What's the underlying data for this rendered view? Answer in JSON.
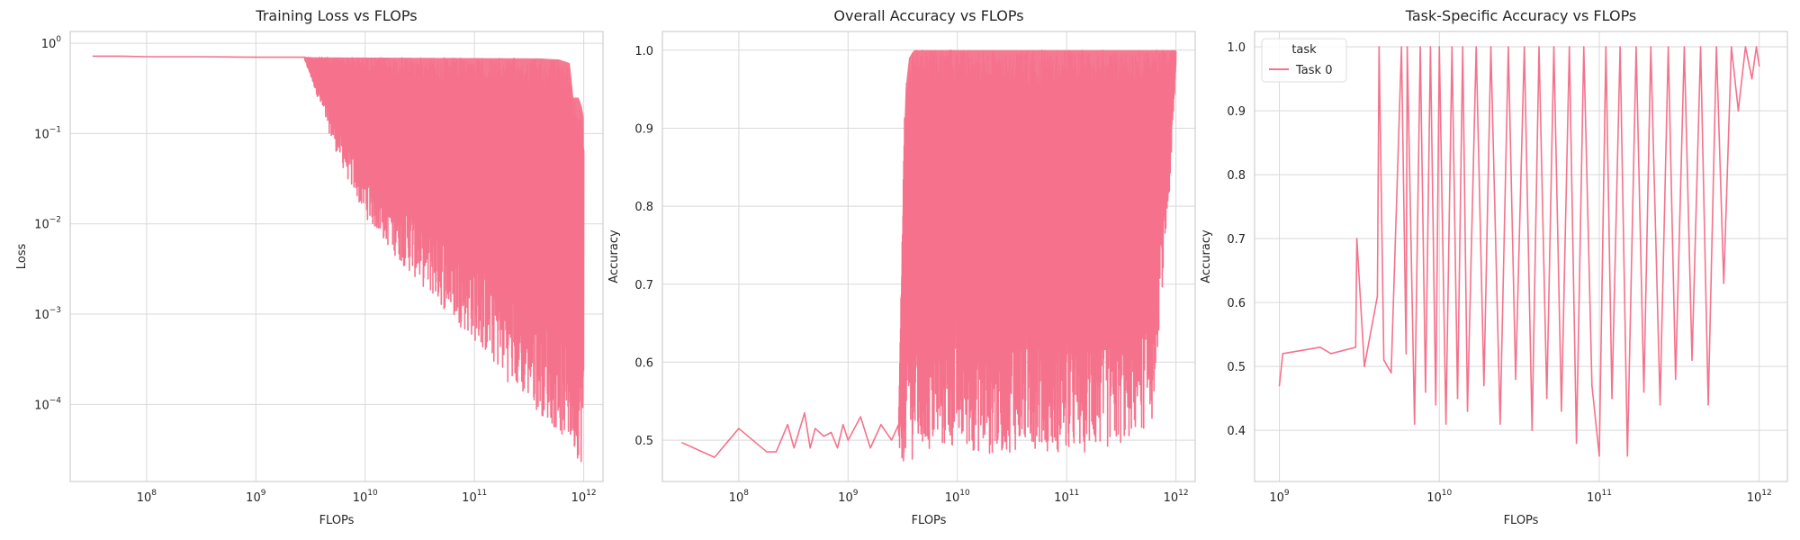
{
  "colors": {
    "series": "#f5728c",
    "grid": "#d9d9d9",
    "frame": "#cfcfcf",
    "text": "#262626"
  },
  "chart_data": [
    {
      "type": "line",
      "title": "Training Loss vs FLOPs",
      "xlabel": "FLOPs",
      "ylabel": "Loss",
      "xscale": "log",
      "yscale": "log",
      "xlim": [
        20000000.0,
        1500000000000.0
      ],
      "ylim": [
        1.4e-05,
        1.35
      ],
      "xticks": [
        {
          "value": 100000000.0,
          "base": "10",
          "exp": "8"
        },
        {
          "value": 1000000000.0,
          "base": "10",
          "exp": "9"
        },
        {
          "value": 10000000000.0,
          "base": "10",
          "exp": "10"
        },
        {
          "value": 100000000000.0,
          "base": "10",
          "exp": "11"
        },
        {
          "value": 1000000000000.0,
          "base": "10",
          "exp": "12"
        }
      ],
      "yticks": [
        {
          "value": 0.0001,
          "base": "10",
          "exp": "−4"
        },
        {
          "value": 0.001,
          "base": "10",
          "exp": "−3"
        },
        {
          "value": 0.01,
          "base": "10",
          "exp": "−2"
        },
        {
          "value": 0.1,
          "base": "10",
          "exp": "−1"
        },
        {
          "value": 1,
          "base": "10",
          "exp": "0"
        }
      ],
      "series": [
        {
          "name": "loss",
          "band_start_x": 2800000000.0,
          "band_end_x": 1000000000000.0,
          "envelope_low": [
            [
              2800000000.0,
              0.65
            ],
            [
              3500000000.0,
              0.3
            ],
            [
              5000000000.0,
              0.08
            ],
            [
              7000000000.0,
              0.03
            ],
            [
              10000000000.0,
              0.012
            ],
            [
              20000000000.0,
              0.004
            ],
            [
              50000000000.0,
              0.0012
            ],
            [
              100000000000.0,
              0.0005
            ],
            [
              200000000000.0,
              0.00018
            ],
            [
              500000000000.0,
              6e-05
            ],
            [
              800000000000.0,
              3e-05
            ],
            [
              950000000000.0,
              2.2e-05
            ]
          ],
          "envelope_high": [
            [
              2800000000.0,
              0.7
            ],
            [
              400000000000.0,
              0.68
            ],
            [
              600000000000.0,
              0.66
            ],
            [
              750000000000.0,
              0.6
            ],
            [
              800000000000.0,
              0.25
            ],
            [
              900000000000.0,
              0.25
            ],
            [
              960000000000.0,
              0.2
            ],
            [
              1000000000000.0,
              0.15
            ]
          ],
          "x": [
            32000000.0,
            60000000.0,
            100000000.0,
            300000000.0,
            1000000000.0,
            2000000000.0,
            2800000000.0
          ],
          "y": [
            0.72,
            0.72,
            0.71,
            0.71,
            0.7,
            0.7,
            0.7
          ]
        }
      ]
    },
    {
      "type": "line",
      "title": "Overall Accuracy vs FLOPs",
      "xlabel": "FLOPs",
      "ylabel": "Accuracy",
      "xscale": "log",
      "yscale": "linear",
      "xlim": [
        20000000.0,
        1500000000000.0
      ],
      "ylim": [
        0.447,
        1.024
      ],
      "xticks": [
        {
          "value": 100000000.0,
          "base": "10",
          "exp": "8"
        },
        {
          "value": 1000000000.0,
          "base": "10",
          "exp": "9"
        },
        {
          "value": 10000000000.0,
          "base": "10",
          "exp": "10"
        },
        {
          "value": 100000000000.0,
          "base": "10",
          "exp": "11"
        },
        {
          "value": 1000000000000.0,
          "base": "10",
          "exp": "12"
        }
      ],
      "yticks": [
        {
          "value": 0.5,
          "label": "0.5"
        },
        {
          "value": 0.6,
          "label": "0.6"
        },
        {
          "value": 0.7,
          "label": "0.7"
        },
        {
          "value": 0.8,
          "label": "0.8"
        },
        {
          "value": 0.9,
          "label": "0.9"
        },
        {
          "value": 1.0,
          "label": "1.0"
        }
      ],
      "series": [
        {
          "name": "accuracy",
          "band_start_x": 2900000000.0,
          "band_end_x": 1000000000000.0,
          "envelope_low": [
            [
              2900000000.0,
              0.5
            ],
            [
              3000000000.0,
              0.47
            ],
            [
              5000000000.0,
              0.48
            ],
            [
              10000000000.0,
              0.49
            ],
            [
              20000000000.0,
              0.48
            ],
            [
              50000000000.0,
              0.49
            ],
            [
              100000000000.0,
              0.48
            ],
            [
              300000000000.0,
              0.49
            ],
            [
              600000000000.0,
              0.52
            ],
            [
              900000000000.0,
              0.84
            ],
            [
              1000000000000.0,
              0.98
            ]
          ],
          "envelope_high": [
            [
              2900000000.0,
              0.52
            ],
            [
              3300000000.0,
              0.94
            ],
            [
              3600000000.0,
              0.99
            ],
            [
              4000000000.0,
              1.0
            ],
            [
              1000000000000.0,
              1.0
            ]
          ],
          "x": [
            30000000.0,
            60000000.0,
            100000000.0,
            180000000.0,
            220000000.0,
            280000000.0,
            320000000.0,
            400000000.0,
            450000000.0,
            500000000.0,
            600000000.0,
            700000000.0,
            800000000.0,
            900000000.0,
            1000000000.0,
            1300000000.0,
            1600000000.0,
            2000000000.0,
            2500000000.0,
            2900000000.0
          ],
          "y": [
            0.497,
            0.478,
            0.515,
            0.485,
            0.485,
            0.52,
            0.49,
            0.535,
            0.49,
            0.515,
            0.505,
            0.51,
            0.49,
            0.52,
            0.5,
            0.53,
            0.49,
            0.52,
            0.5,
            0.52
          ]
        }
      ]
    },
    {
      "type": "line",
      "title": "Task-Specific Accuracy vs FLOPs",
      "xlabel": "FLOPs",
      "ylabel": "Accuracy",
      "xscale": "log",
      "yscale": "linear",
      "xlim": [
        700000000.0,
        1500000000000.0
      ],
      "ylim": [
        0.32,
        1.024
      ],
      "xticks": [
        {
          "value": 1000000000.0,
          "base": "10",
          "exp": "9"
        },
        {
          "value": 10000000000.0,
          "base": "10",
          "exp": "10"
        },
        {
          "value": 100000000000.0,
          "base": "10",
          "exp": "11"
        },
        {
          "value": 1000000000000.0,
          "base": "10",
          "exp": "12"
        }
      ],
      "yticks": [
        {
          "value": 0.4,
          "label": "0.4"
        },
        {
          "value": 0.5,
          "label": "0.5"
        },
        {
          "value": 0.6,
          "label": "0.6"
        },
        {
          "value": 0.7,
          "label": "0.7"
        },
        {
          "value": 0.8,
          "label": "0.8"
        },
        {
          "value": 0.9,
          "label": "0.9"
        },
        {
          "value": 1.0,
          "label": "1.0"
        }
      ],
      "legend": {
        "title": "task",
        "entries": [
          "Task 0"
        ],
        "placement": "top-left"
      },
      "series": [
        {
          "name": "Task 0",
          "x": [
            1000000000.0,
            1050000000.0,
            1800000000.0,
            2100000000.0,
            3000000000.0,
            3050000000.0,
            3400000000.0,
            4100000000.0,
            4200000000.0,
            4500000000.0,
            5000000000.0,
            5800000000.0,
            6200000000.0,
            6300000000.0,
            7000000000.0,
            7600000000.0,
            8200000000.0,
            8800000000.0,
            9500000000.0,
            10000000000.0,
            11000000000.0,
            12000000000.0,
            13000000000.0,
            14000000000.0,
            15000000000.0,
            17000000000.0,
            19000000000.0,
            21000000000.0,
            24000000000.0,
            27000000000.0,
            30000000000.0,
            34000000000.0,
            38000000000.0,
            42000000000.0,
            47000000000.0,
            52000000000.0,
            58000000000.0,
            65000000000.0,
            72000000000.0,
            80000000000.0,
            90000000000.0,
            100000000000.0,
            110000000000.0,
            120000000000.0,
            135000000000.0,
            150000000000.0,
            170000000000.0,
            190000000000.0,
            210000000000.0,
            240000000000.0,
            270000000000.0,
            300000000000.0,
            340000000000.0,
            380000000000.0,
            430000000000.0,
            480000000000.0,
            540000000000.0,
            600000000000.0,
            670000000000.0,
            740000000000.0,
            820000000000.0,
            900000000000.0,
            960000000000.0,
            1000000000000.0
          ],
          "y": [
            0.47,
            0.52,
            0.53,
            0.52,
            0.53,
            0.7,
            0.5,
            0.61,
            1.0,
            0.51,
            0.49,
            1.0,
            0.52,
            1.0,
            0.41,
            1.0,
            0.46,
            1.0,
            0.44,
            1.0,
            0.41,
            1.0,
            0.45,
            1.0,
            0.43,
            1.0,
            0.47,
            1.0,
            0.41,
            1.0,
            0.48,
            1.0,
            0.4,
            1.0,
            0.45,
            1.0,
            0.43,
            1.0,
            0.38,
            1.0,
            0.47,
            0.36,
            1.0,
            0.45,
            1.0,
            0.36,
            1.0,
            0.46,
            1.0,
            0.44,
            1.0,
            0.48,
            1.0,
            0.51,
            1.0,
            0.44,
            1.0,
            0.63,
            1.0,
            0.9,
            1.0,
            0.95,
            1.0,
            0.97
          ]
        }
      ]
    }
  ]
}
